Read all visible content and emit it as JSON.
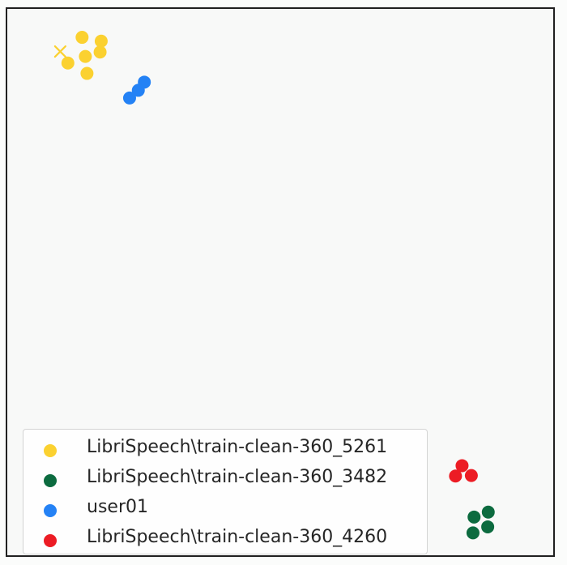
{
  "chart_data": {
    "type": "scatter",
    "title": "",
    "xlabel": "",
    "ylabel": "",
    "xlim": [
      0,
      100
    ],
    "ylim": [
      0,
      100
    ],
    "grid": false,
    "legend_position": "lower-left",
    "series": [
      {
        "name": "LibriSpeech\\train-clean-360_5261",
        "color": "#fbd130",
        "marker": "circle",
        "points": [
          {
            "x": 13.7,
            "y": 94.8
          },
          {
            "x": 17.2,
            "y": 94.1
          },
          {
            "x": 17.0,
            "y": 92.1
          },
          {
            "x": 14.3,
            "y": 91.3
          },
          {
            "x": 11.1,
            "y": 90.1
          },
          {
            "x": 14.6,
            "y": 88.2
          }
        ]
      },
      {
        "name": "LibriSpeech\\train-clean-360_5261 (query)",
        "color": "#fbd130",
        "marker": "x",
        "in_legend": false,
        "points": [
          {
            "x": 9.7,
            "y": 92.2
          }
        ]
      },
      {
        "name": "LibriSpeech\\train-clean-360_3482",
        "color": "#0c6b3f",
        "marker": "circle",
        "points": [
          {
            "x": 88.1,
            "y": 7.9
          },
          {
            "x": 85.5,
            "y": 7.0
          },
          {
            "x": 88.0,
            "y": 5.2
          },
          {
            "x": 85.3,
            "y": 4.1
          }
        ]
      },
      {
        "name": "user01",
        "color": "#2482f5",
        "marker": "circle",
        "points": [
          {
            "x": 25.1,
            "y": 86.6
          },
          {
            "x": 24.0,
            "y": 85.1
          },
          {
            "x": 22.4,
            "y": 83.7
          }
        ]
      },
      {
        "name": "LibriSpeech\\train-clean-360_4260",
        "color": "#ec1c24",
        "marker": "circle",
        "points": [
          {
            "x": 83.3,
            "y": 16.4
          },
          {
            "x": 82.1,
            "y": 14.5
          },
          {
            "x": 85.0,
            "y": 14.6
          }
        ]
      }
    ]
  }
}
